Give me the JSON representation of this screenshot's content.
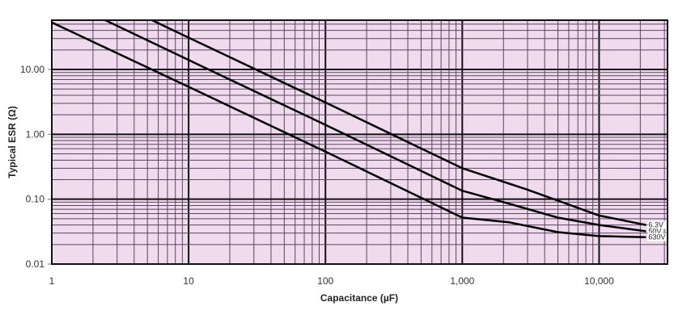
{
  "chart_data": {
    "type": "line",
    "title": "",
    "xlabel": "Capacitance (µF)",
    "ylabel": "Typical ESR (Ω)",
    "xscale": "log",
    "yscale": "log",
    "xlim": [
      1,
      31623
    ],
    "ylim": [
      0.01,
      57.5
    ],
    "grid": true,
    "background": "#efdaee",
    "xticks": [
      {
        "v": 1,
        "label": "1"
      },
      {
        "v": 10,
        "label": "10"
      },
      {
        "v": 100,
        "label": "100"
      },
      {
        "v": 1000,
        "label": "1,000"
      },
      {
        "v": 10000,
        "label": "10,000"
      }
    ],
    "yticks": [
      {
        "v": 10,
        "label": "10.00"
      },
      {
        "v": 1,
        "label": "1.00"
      },
      {
        "v": 0.1,
        "label": "0.10"
      },
      {
        "v": 0.01,
        "label": "0.01"
      }
    ],
    "series": [
      {
        "name": "6.3V",
        "x": [
          5.4,
          10,
          100,
          1000,
          3000,
          10000,
          22000
        ],
        "y": [
          57.5,
          31,
          3.1,
          0.3,
          0.14,
          0.056,
          0.04
        ]
      },
      {
        "name": "50V",
        "x": [
          2.46,
          10,
          100,
          1000,
          2000,
          5000,
          10000,
          22000
        ],
        "y": [
          57.5,
          14,
          1.4,
          0.135,
          0.09,
          0.052,
          0.04,
          0.032
        ]
      },
      {
        "name": "630V",
        "x": [
          1,
          10,
          100,
          1000,
          2200,
          5000,
          10000,
          22000
        ],
        "y": [
          53,
          5.4,
          0.54,
          0.052,
          0.044,
          0.031,
          0.027,
          0.026
        ]
      }
    ]
  }
}
